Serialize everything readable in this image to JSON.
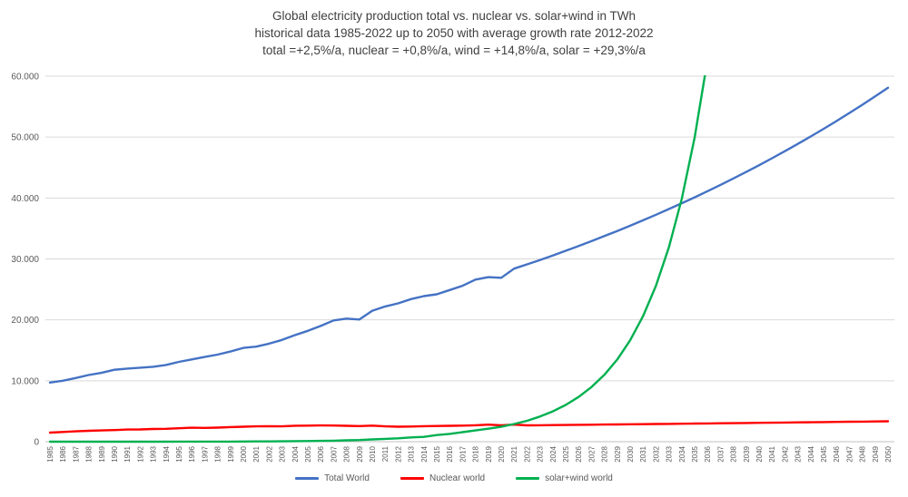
{
  "chart_data": {
    "type": "line",
    "title_lines": [
      "Global electricity production total vs. nuclear vs. solar+wind in TWh",
      "historical data 1985-2022 up to 2050 with average growth rate 2012-2022",
      "total =+2,5%/a, nuclear = +0,8%/a, wind = +14,8%/a, solar = +29,3%/a"
    ],
    "xlabel": "",
    "ylabel": "",
    "ylim": [
      0,
      60000
    ],
    "grid": "horizontal",
    "legend_position": "bottom",
    "ytick_values": [
      0,
      10000,
      20000,
      30000,
      40000,
      50000,
      60000
    ],
    "ytick_labels": [
      "0",
      "10.000",
      "20.000",
      "30.000",
      "40.000",
      "50.000",
      "60.000"
    ],
    "x": [
      1985,
      1986,
      1987,
      1988,
      1989,
      1990,
      1991,
      1992,
      1993,
      1994,
      1995,
      1996,
      1997,
      1998,
      1999,
      2000,
      2001,
      2002,
      2003,
      2004,
      2005,
      2006,
      2007,
      2008,
      2009,
      2010,
      2011,
      2012,
      2013,
      2014,
      2015,
      2016,
      2017,
      2018,
      2019,
      2020,
      2021,
      2022,
      2023,
      2024,
      2025,
      2026,
      2027,
      2028,
      2029,
      2030,
      2031,
      2032,
      2033,
      2034,
      2035,
      2036,
      2037,
      2038,
      2039,
      2040,
      2041,
      2042,
      2043,
      2044,
      2045,
      2046,
      2047,
      2048,
      2049,
      2050
    ],
    "series": [
      {
        "name": "Total World",
        "color": "#4472c4",
        "values": [
          9700,
          10000,
          10450,
          10950,
          11300,
          11800,
          12000,
          12150,
          12300,
          12600,
          13100,
          13500,
          13900,
          14300,
          14800,
          15400,
          15600,
          16100,
          16700,
          17500,
          18200,
          19000,
          19900,
          20200,
          20050,
          21500,
          22200,
          22700,
          23400,
          23900,
          24200,
          24900,
          25600,
          26600,
          27000,
          26900,
          28400,
          29100,
          29828,
          30573,
          31338,
          32121,
          32924,
          33747,
          34591,
          35456,
          36342,
          37251,
          38182,
          39136,
          40115,
          41118,
          42146,
          43199,
          44279,
          45386,
          46521,
          47684,
          48876,
          50098,
          51350,
          52634,
          53950,
          55299,
          56681,
          58098
        ]
      },
      {
        "name": "Nuclear world",
        "color": "#ff0000",
        "values": [
          1490,
          1590,
          1700,
          1790,
          1845,
          1910,
          1990,
          2010,
          2080,
          2110,
          2210,
          2290,
          2270,
          2310,
          2390,
          2450,
          2520,
          2550,
          2520,
          2620,
          2630,
          2660,
          2650,
          2600,
          2560,
          2630,
          2520,
          2460,
          2480,
          2540,
          2570,
          2610,
          2640,
          2700,
          2800,
          2700,
          2800,
          2680,
          2701,
          2723,
          2745,
          2767,
          2789,
          2811,
          2834,
          2856,
          2879,
          2902,
          2925,
          2949,
          2972,
          2996,
          3020,
          3044,
          3069,
          3093,
          3118,
          3143,
          3168,
          3193,
          3219,
          3245,
          3271,
          3297,
          3323,
          3350
        ]
      },
      {
        "name": "solar+wind world",
        "color": "#00b050",
        "values": [
          0,
          1,
          1,
          2,
          3,
          4,
          4,
          5,
          6,
          7,
          8,
          9,
          12,
          16,
          21,
          31,
          38,
          52,
          63,
          85,
          104,
          133,
          170,
          219,
          269,
          374,
          468,
          556,
          694,
          796,
          1087,
          1287,
          1566,
          1844,
          2124,
          2436,
          2900,
          3420,
          4118,
          4975,
          6031,
          7337,
          8958,
          10976,
          13495,
          16649,
          20608,
          25591,
          31880,
          39830,
          49905,
          62696,
          null,
          null,
          null,
          null,
          null,
          null,
          null,
          null,
          null,
          null,
          null,
          null,
          null,
          null
        ]
      }
    ]
  }
}
